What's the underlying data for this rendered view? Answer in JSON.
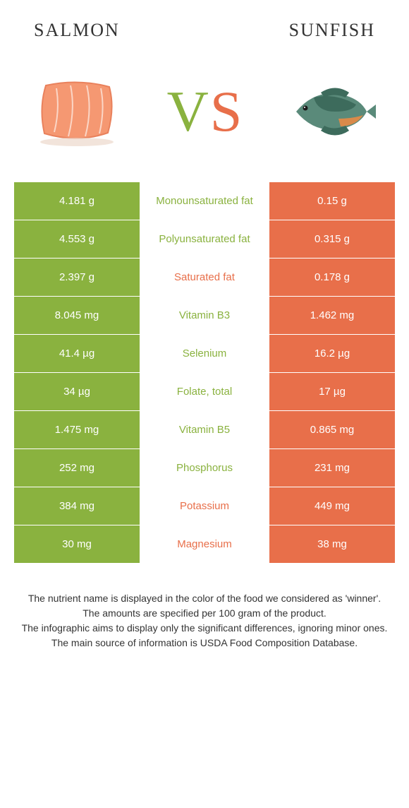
{
  "colors": {
    "green": "#8ab23f",
    "orange": "#e86f4a",
    "bg": "#ffffff",
    "text": "#333333",
    "white": "#ffffff"
  },
  "left": {
    "title": "Salmon"
  },
  "right": {
    "title": "Sunfish"
  },
  "vs": {
    "v": "V",
    "s": "S"
  },
  "rows": [
    {
      "left": "4.181 g",
      "label": "Monounsaturated fat",
      "right": "0.15 g",
      "winner": "left"
    },
    {
      "left": "4.553 g",
      "label": "Polyunsaturated fat",
      "right": "0.315 g",
      "winner": "left"
    },
    {
      "left": "2.397 g",
      "label": "Saturated fat",
      "right": "0.178 g",
      "winner": "right"
    },
    {
      "left": "8.045 mg",
      "label": "Vitamin B3",
      "right": "1.462 mg",
      "winner": "left"
    },
    {
      "left": "41.4 µg",
      "label": "Selenium",
      "right": "16.2 µg",
      "winner": "left"
    },
    {
      "left": "34 µg",
      "label": "Folate, total",
      "right": "17 µg",
      "winner": "left"
    },
    {
      "left": "1.475 mg",
      "label": "Vitamin B5",
      "right": "0.865 mg",
      "winner": "left"
    },
    {
      "left": "252 mg",
      "label": "Phosphorus",
      "right": "231 mg",
      "winner": "left"
    },
    {
      "left": "384 mg",
      "label": "Potassium",
      "right": "449 mg",
      "winner": "right"
    },
    {
      "left": "30 mg",
      "label": "Magnesium",
      "right": "38 mg",
      "winner": "right"
    }
  ],
  "footnotes": [
    "The nutrient name is displayed in the color of the food we considered as 'winner'.",
    "The amounts are specified per 100 gram of the product.",
    "The infographic aims to display only the significant differences, ignoring minor ones.",
    "The main source of information is USDA Food Composition Database."
  ]
}
